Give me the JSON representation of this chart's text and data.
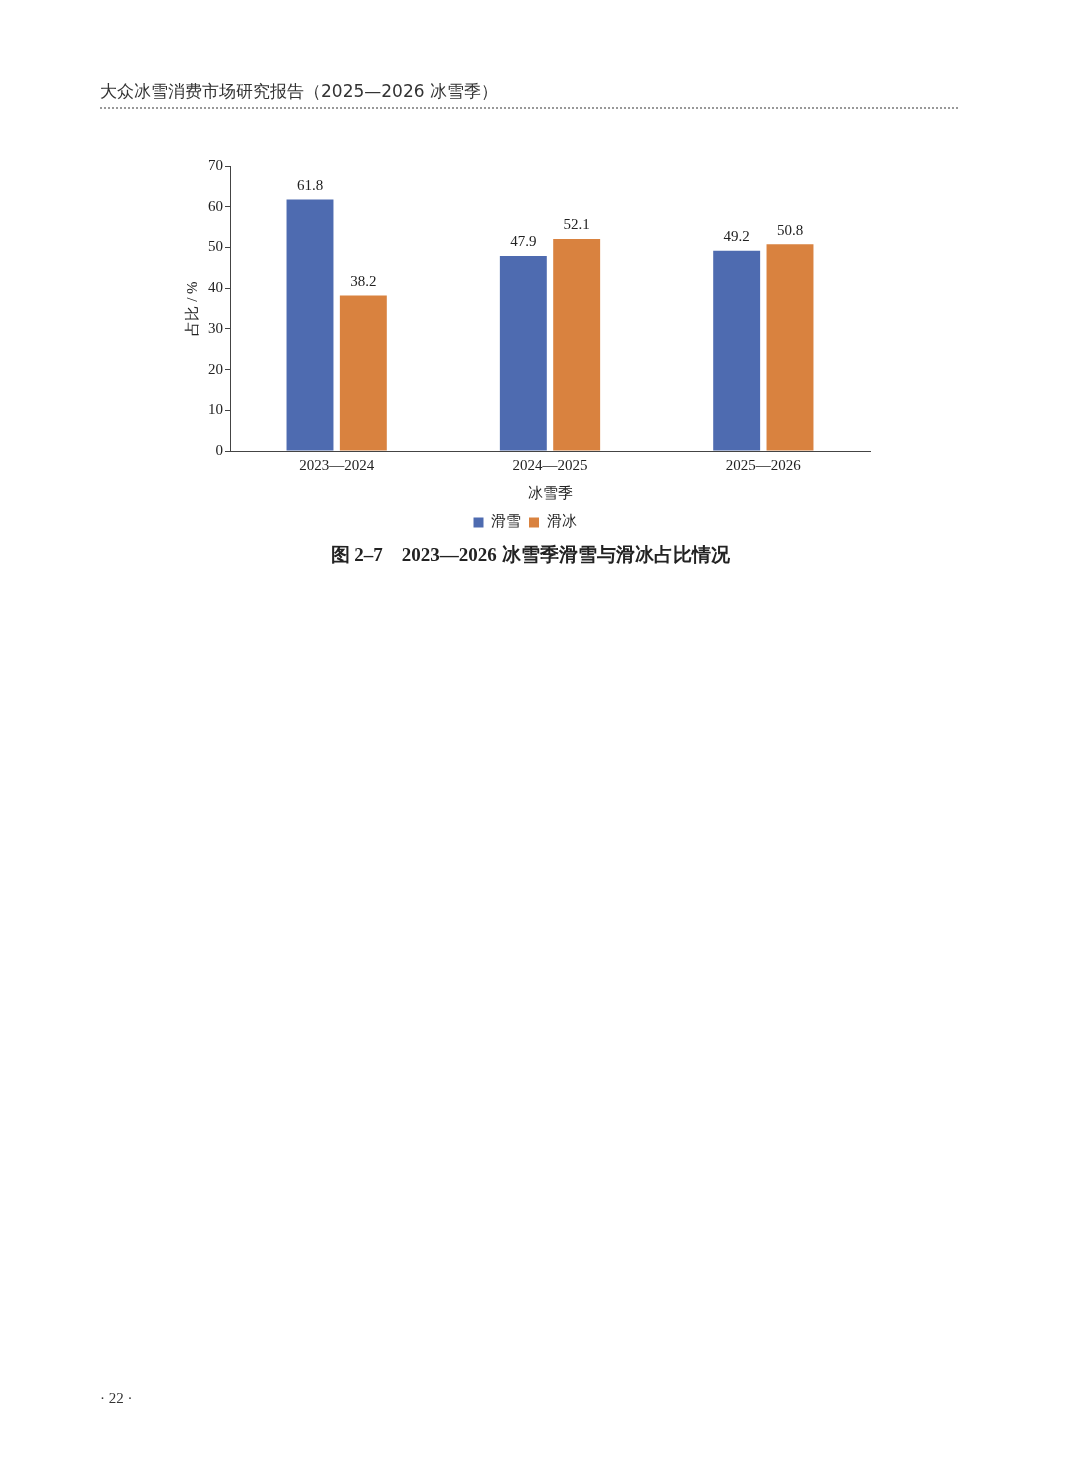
{
  "chart_data": {
    "type": "bar",
    "title": "图 2–7　2023—2026 冰雪季滑雪与滑冰占比情况",
    "xlabel": "冰雪季",
    "ylabel": "占比 / %",
    "annotations": [
      "大众冰雪消费市场研究报告（2025—2026 冰雪季）",
      "· 22 ·"
    ],
    "categories": [
      "2023—2024",
      "2024—2025",
      "2025—2026"
    ],
    "series": [
      {
        "name": "滑雪",
        "color": "#4e6bb0",
        "values": [
          61.8,
          47.9,
          49.2
        ]
      },
      {
        "name": "滑冰",
        "color": "#d9823f",
        "values": [
          38.2,
          52.1,
          50.8
        ]
      }
    ],
    "ylim": [
      0,
      70
    ],
    "yticks": [
      0,
      10,
      20,
      30,
      40,
      50,
      60,
      70
    ],
    "grid": false,
    "legend": "bottom",
    "data_labels": true
  }
}
